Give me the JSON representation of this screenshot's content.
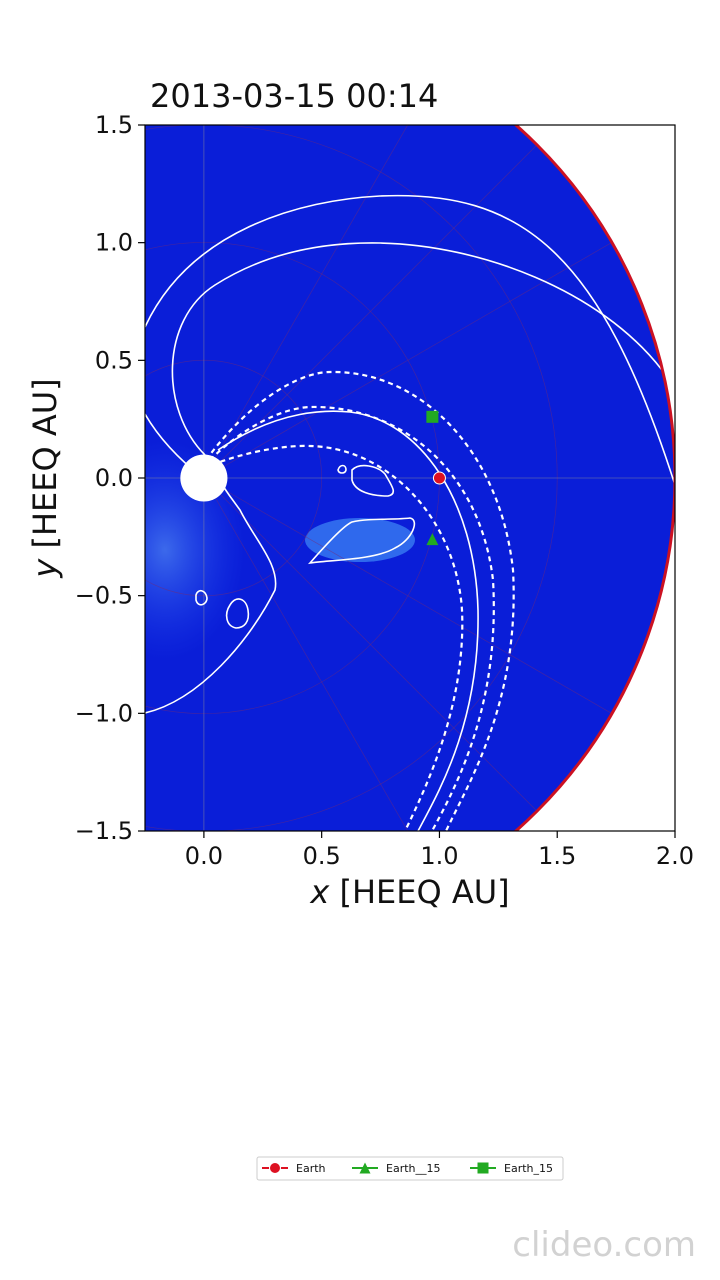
{
  "chart_data": {
    "type": "heatmap",
    "title": "2013-03-15 00:14",
    "xlabel_var": "x",
    "xlabel_unit": " [HEEQ AU]",
    "ylabel_var": "y",
    "ylabel_unit": " [HEEQ AU]",
    "xlim": [
      -0.25,
      2.0
    ],
    "ylim": [
      -1.5,
      1.5
    ],
    "x_ticks": [
      0.0,
      0.5,
      1.0,
      1.5,
      2.0
    ],
    "x_tick_labels": [
      "0.0",
      "0.5",
      "1.0",
      "1.5",
      "2.0"
    ],
    "y_ticks": [
      -1.5,
      -1.0,
      -0.5,
      0.0,
      0.5,
      1.0,
      1.5
    ],
    "y_tick_labels": [
      "−1.5",
      "−1.0",
      "−0.5",
      "0.0",
      "0.5",
      "1.0",
      "1.5"
    ],
    "grid": true,
    "domain_outer_radius_au": 2.0,
    "sun_radius_au": 0.1,
    "colors": {
      "background": "#0a1ed8",
      "outer_boundary": "#cc1122",
      "contour": "#ffffff",
      "earth": "#dd1122",
      "earth_minus15": "#22aa22",
      "earth_plus15": "#22aa22"
    },
    "markers": [
      {
        "name": "Earth",
        "shape": "circle",
        "x": 1.0,
        "y": 0.0
      },
      {
        "name": "Earth__15",
        "shape": "triangle",
        "x": 0.97,
        "y": -0.26
      },
      {
        "name": "Earth_15",
        "shape": "square",
        "x": 0.97,
        "y": 0.26
      }
    ],
    "legend": {
      "placement": "bottom-center",
      "entries": [
        {
          "label": "Earth",
          "shape": "circle",
          "color": "#dd1122"
        },
        {
          "label": "Earth__15",
          "shape": "triangle",
          "color": "#22aa22"
        },
        {
          "label": "Earth_15",
          "shape": "square",
          "color": "#22aa22"
        }
      ]
    }
  },
  "watermark": "clideo.com"
}
